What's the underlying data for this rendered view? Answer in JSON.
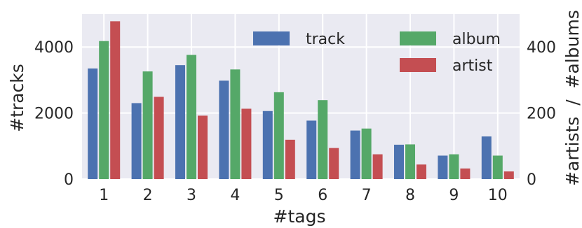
{
  "chart_data": {
    "type": "bar",
    "xlabel": "#tags",
    "ylabel": "#tracks",
    "y2label": "#artists  /  #albums",
    "categories": [
      "1",
      "2",
      "3",
      "4",
      "5",
      "6",
      "7",
      "8",
      "9",
      "10"
    ],
    "ylim": [
      0,
      5000
    ],
    "y2lim": [
      0,
      500
    ],
    "yticks": [
      0,
      2000,
      4000
    ],
    "y2ticks": [
      0,
      200,
      400
    ],
    "grid": true,
    "legend_position": "top-right",
    "series": [
      {
        "name": "track",
        "axis": "left",
        "color": "#4c72b0",
        "values": [
          3350,
          2300,
          3450,
          2980,
          2060,
          1770,
          1470,
          1040,
          710,
          1290
        ]
      },
      {
        "name": "album",
        "axis": "right",
        "color": "#55a868",
        "values": [
          418,
          326,
          376,
          332,
          263,
          239,
          153,
          105,
          75,
          71
        ]
      },
      {
        "name": "artist",
        "axis": "right",
        "color": "#c44e52",
        "values": [
          478,
          249,
          192,
          213,
          119,
          94,
          75,
          44,
          32,
          23
        ]
      }
    ]
  }
}
